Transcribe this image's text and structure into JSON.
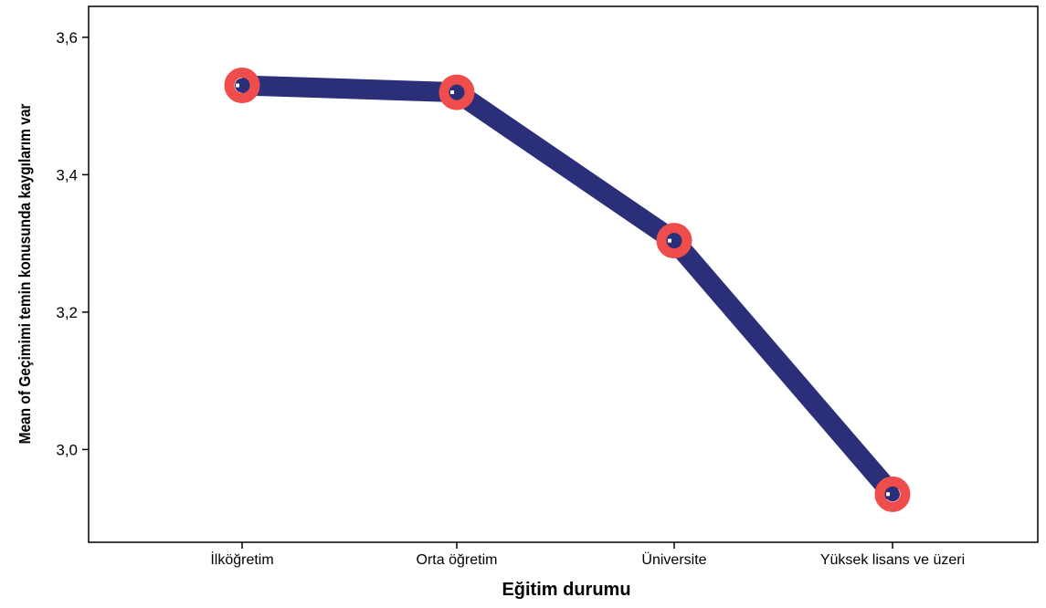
{
  "chart_data": {
    "type": "line",
    "categories": [
      "İlköğretim",
      "Orta öğretim",
      "Üniversite",
      "Yüksek lisans ve üzeri"
    ],
    "values": [
      3.53,
      3.52,
      3.304,
      2.935
    ],
    "xlabel": "Eğitim durumu",
    "ylabel": "Mean of Geçimimi temin konusunda kaygılarım var",
    "ylim": [
      2.865,
      3.645
    ],
    "yticks": [
      3.0,
      3.2,
      3.4,
      3.6
    ],
    "ytick_labels": [
      "3,0",
      "3,2",
      "3,4",
      "3,6"
    ],
    "grid": false,
    "legend": "none",
    "colors": {
      "line": "#2b2f7a",
      "marker": "#ee4d4b",
      "marker_center": "#2b2f7a",
      "axis": "#000000"
    }
  }
}
